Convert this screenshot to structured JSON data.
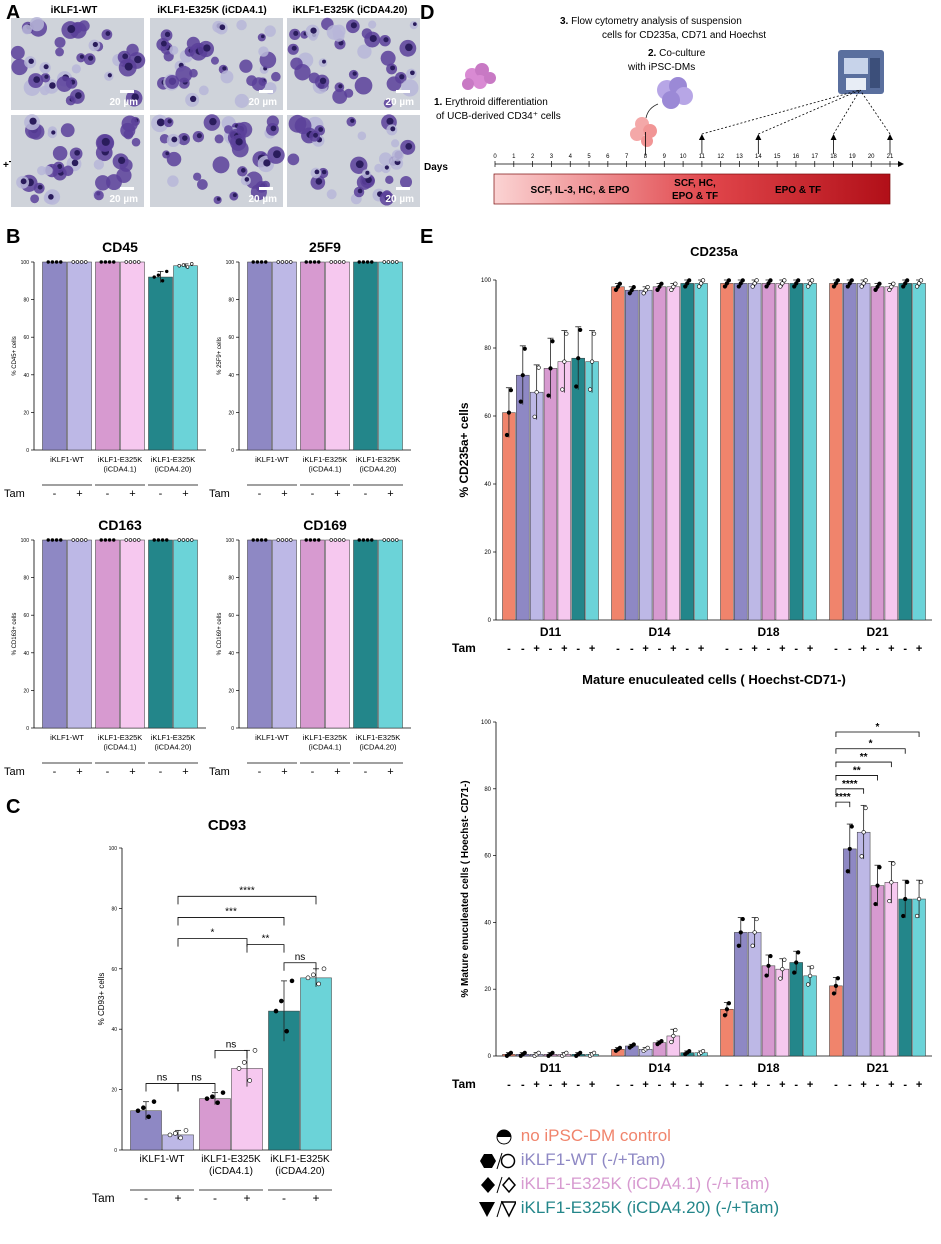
{
  "colors": {
    "wt_minus": "#8e88c4",
    "wt_plus": "#bdb8e6",
    "cda41_minus": "#d79ad0",
    "cda41_plus": "#f6c8ef",
    "cda420_minus": "#23868a",
    "cda420_plus": "#6bd3d8",
    "control": "#f0846c",
    "micro_bg": "#cfd3da",
    "cell": "#5a3f9a",
    "nucleus": "#2a1c5c",
    "media_start": "#fbd2d2",
    "media_end": "#b40d15"
  },
  "panels": {
    "a": "A",
    "b": "B",
    "c": "C",
    "d": "D",
    "e": "E"
  },
  "panel_a": {
    "col_labels": [
      "iKLF1-WT",
      "iKLF1-E325K (iCDA4.1)",
      "iKLF1-E325K (iCDA4.20)"
    ],
    "row_label": "+Tam",
    "scale_bar": "20 µm"
  },
  "panel_d": {
    "step1_num": "1.",
    "step1_text": "Erythroid differentiation",
    "step1_text2": "of UCB-derived CD34⁺ cells",
    "step2_num": "2.",
    "step2_text": "Co-culture",
    "step2_text2": "with iPSC-DMs",
    "step3_num": "3.",
    "step3_text": "Flow cytometry analysis of suspension",
    "step3_text2": "cells for CD235a, CD71 and Hoechst",
    "days_label": "Days",
    "days": [
      "0",
      "1",
      "2",
      "3",
      "4",
      "5",
      "6",
      "7",
      "8",
      "9",
      "10",
      "11",
      "12",
      "13",
      "14",
      "15",
      "16",
      "17",
      "18",
      "19",
      "20",
      "21"
    ],
    "media": [
      "SCF, IL-3, HC, & EPO",
      "SCF, HC,",
      "EPO & TF",
      "EPO & TF"
    ]
  },
  "bar_groups": {
    "group_labels": [
      "iKLF1-WT",
      "iKLF1-E325K",
      "(iCDA4.1)",
      "iKLF1-E325K",
      "(iCDA4.20)"
    ],
    "tam_label": "Tam",
    "signs": [
      "-",
      "+",
      "-",
      "+",
      "-",
      "+"
    ]
  },
  "day_groups": {
    "labels": [
      "D11",
      "D14",
      "D18",
      "D21"
    ],
    "signs": [
      "-",
      "-",
      "+",
      "-",
      "+",
      "-",
      "+"
    ]
  },
  "stats": {
    "ns": "ns",
    "s1": "*",
    "s2": "**",
    "s3": "***",
    "s4": "****"
  },
  "legend": {
    "control": "no iPSC-DM control",
    "wt": "iKLF1-WT (-/+Tam)",
    "cda41": "iKLF1-E325K (iCDA4.1) (-/+Tam)",
    "cda420": "iKLF1-E325K (iCDA4.20) (-/+Tam)"
  },
  "chart_data": [
    {
      "id": "b_cd45",
      "type": "bar",
      "title": "CD45",
      "ylabel": "% CD45+ cells",
      "ylim": [
        0,
        100
      ],
      "categories": [
        "iKLF1-WT -",
        "iKLF1-WT +",
        "iCDA4.1 -",
        "iCDA4.1 +",
        "iCDA4.20 -",
        "iCDA4.20 +"
      ],
      "values": [
        100,
        100,
        100,
        100,
        92,
        98
      ],
      "errors": [
        0,
        0,
        0,
        0,
        3,
        1
      ]
    },
    {
      "id": "b_25f9",
      "type": "bar",
      "title": "25F9",
      "ylabel": "% 25F9+ cells",
      "ylim": [
        0,
        100
      ],
      "categories": [
        "iKLF1-WT -",
        "iKLF1-WT +",
        "iCDA4.1 -",
        "iCDA4.1 +",
        "iCDA4.20 -",
        "iCDA4.20 +"
      ],
      "values": [
        100,
        100,
        100,
        100,
        100,
        100
      ],
      "errors": [
        0,
        0,
        0,
        0,
        0,
        0
      ]
    },
    {
      "id": "b_cd163",
      "type": "bar",
      "title": "CD163",
      "ylabel": "% CD163+ cells",
      "ylim": [
        0,
        100
      ],
      "categories": [
        "iKLF1-WT -",
        "iKLF1-WT +",
        "iCDA4.1 -",
        "iCDA4.1 +",
        "iCDA4.20 -",
        "iCDA4.20 +"
      ],
      "values": [
        100,
        100,
        100,
        100,
        100,
        100
      ],
      "errors": [
        0,
        0,
        0,
        0,
        0,
        0
      ]
    },
    {
      "id": "b_cd169",
      "type": "bar",
      "title": "CD169",
      "ylabel": "% CD169+ cells",
      "ylim": [
        0,
        100
      ],
      "categories": [
        "iKLF1-WT -",
        "iKLF1-WT +",
        "iCDA4.1 -",
        "iCDA4.1 +",
        "iCDA4.20 -",
        "iCDA4.20 +"
      ],
      "values": [
        100,
        100,
        100,
        100,
        100,
        100
      ],
      "errors": [
        0,
        0,
        0,
        0,
        0,
        0
      ]
    },
    {
      "id": "c_cd93",
      "type": "bar",
      "title": "CD93",
      "ylabel": "% CD93+ cells",
      "ylim": [
        0,
        100
      ],
      "categories": [
        "iKLF1-WT -",
        "iKLF1-WT +",
        "iCDA4.1 -",
        "iCDA4.1 +",
        "iCDA4.20 -",
        "iCDA4.20 +"
      ],
      "values": [
        13,
        5,
        17,
        27,
        46,
        57
      ],
      "errors": [
        3,
        1.5,
        2,
        6,
        10,
        3
      ]
    },
    {
      "id": "e_cd235a",
      "type": "bar",
      "title": "CD235a",
      "ylabel": "% CD235a+ cells",
      "ylim": [
        0,
        100
      ],
      "categories": [
        "D11",
        "D14",
        "D18",
        "D21"
      ],
      "series": [
        {
          "name": "no iPSC-DM control",
          "values": [
            61,
            98,
            99,
            99
          ]
        },
        {
          "name": "iKLF1-WT -Tam",
          "values": [
            72,
            97,
            99,
            99
          ]
        },
        {
          "name": "iKLF1-WT +Tam",
          "values": [
            67,
            97,
            99,
            99
          ]
        },
        {
          "name": "iCDA4.1 -Tam",
          "values": [
            74,
            98,
            99,
            98
          ]
        },
        {
          "name": "iCDA4.1 +Tam",
          "values": [
            76,
            98,
            99,
            98
          ]
        },
        {
          "name": "iCDA4.20 -Tam",
          "values": [
            77,
            99,
            99,
            99
          ]
        },
        {
          "name": "iCDA4.20 +Tam",
          "values": [
            76,
            99,
            99,
            99
          ]
        }
      ]
    },
    {
      "id": "e_mature",
      "type": "bar",
      "title": "Mature enuculeated cells ( Hoechst-CD71-)",
      "ylabel": "% Mature enuculeated cells ( Hoechst- CD71-)",
      "ylim": [
        0,
        100
      ],
      "categories": [
        "D11",
        "D14",
        "D18",
        "D21"
      ],
      "series": [
        {
          "name": "no iPSC-DM control",
          "values": [
            0.5,
            2,
            14,
            21
          ]
        },
        {
          "name": "iKLF1-WT -Tam",
          "values": [
            0.5,
            3,
            37,
            62
          ]
        },
        {
          "name": "iKLF1-WT +Tam",
          "values": [
            0.5,
            2,
            37,
            67
          ]
        },
        {
          "name": "iCDA4.1 -Tam",
          "values": [
            0.5,
            4,
            27,
            51
          ]
        },
        {
          "name": "iCDA4.1 +Tam",
          "values": [
            0.5,
            6,
            26,
            52
          ]
        },
        {
          "name": "iCDA4.20 -Tam",
          "values": [
            0.5,
            1,
            28,
            47
          ]
        },
        {
          "name": "iCDA4.20 +Tam",
          "values": [
            0.5,
            1,
            24,
            47
          ]
        }
      ]
    }
  ]
}
